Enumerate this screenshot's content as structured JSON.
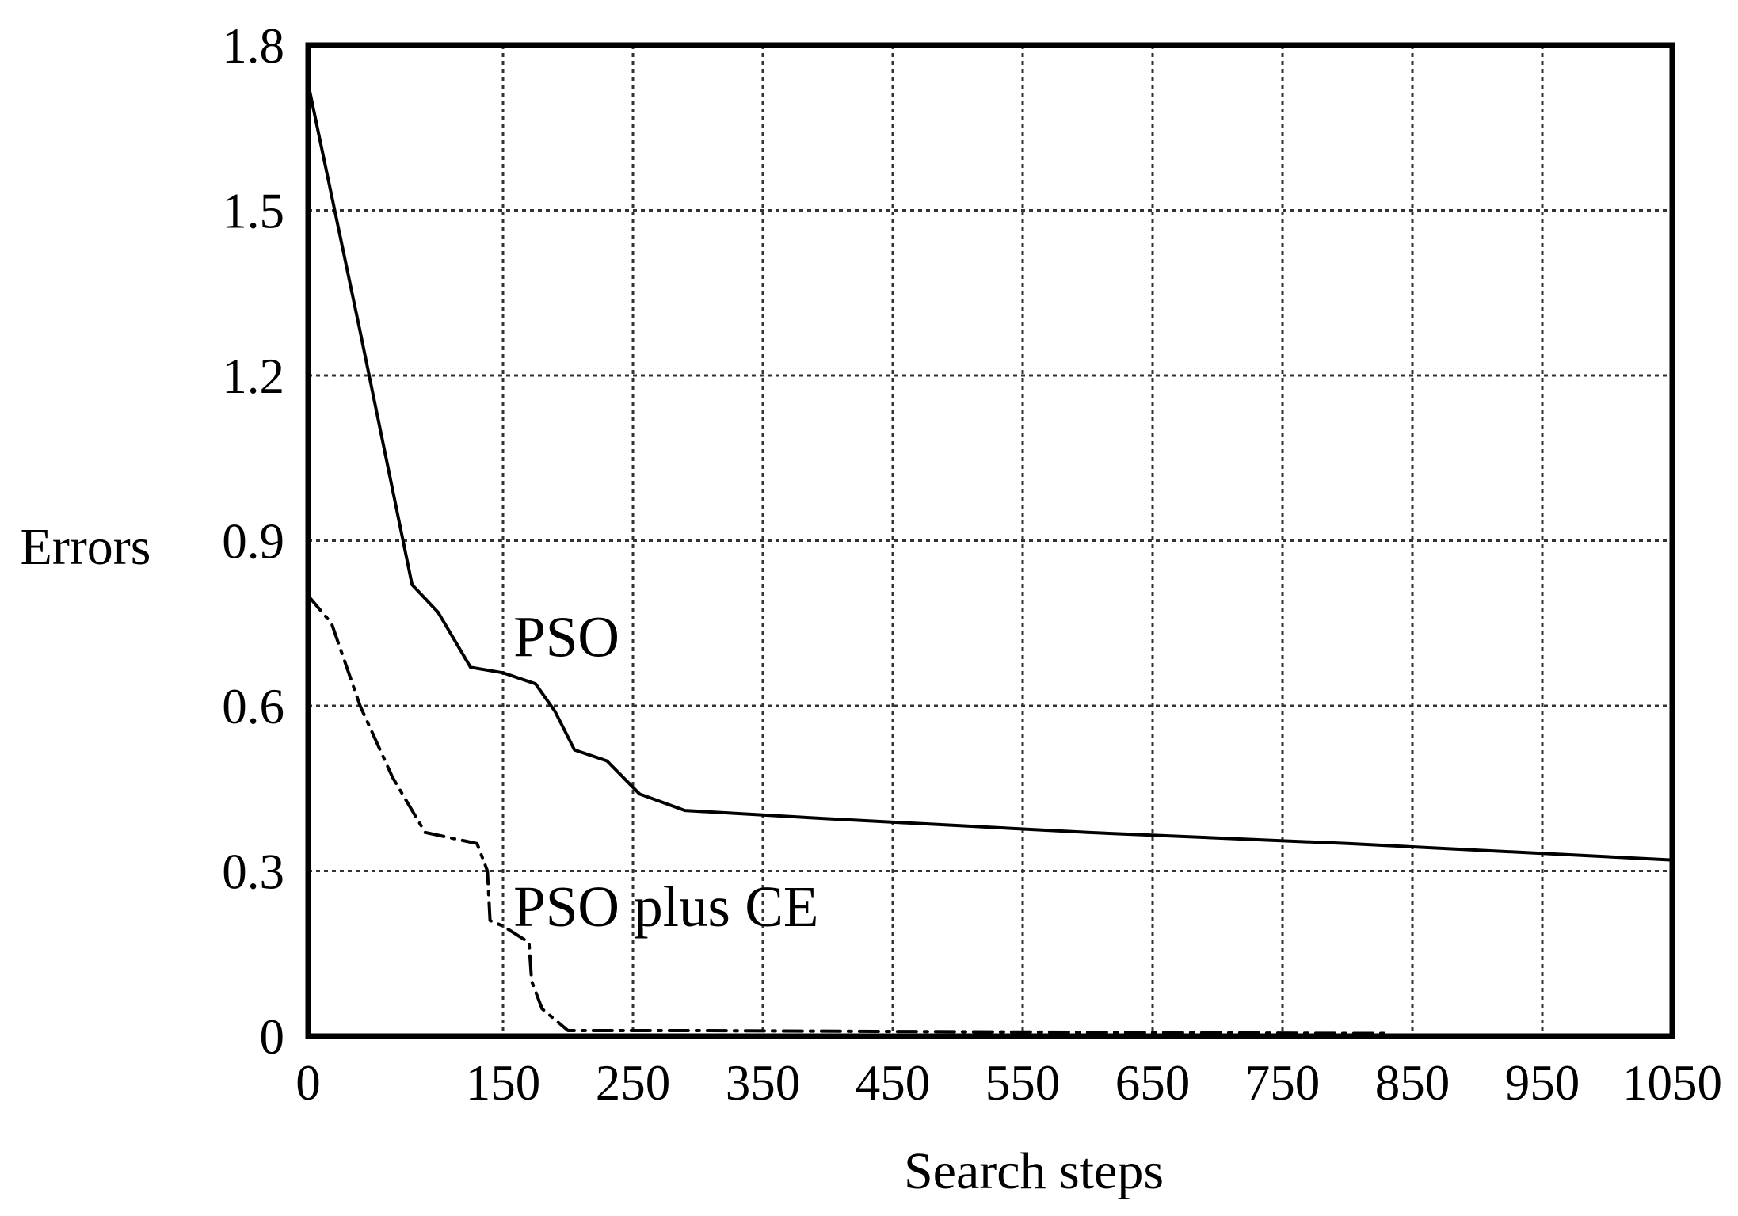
{
  "chart_data": {
    "type": "line",
    "xlabel": "Search steps",
    "ylabel": "Errors",
    "xlim": [
      0,
      1050
    ],
    "ylim": [
      0,
      1.8
    ],
    "x_ticks": [
      0,
      150,
      250,
      350,
      450,
      550,
      650,
      750,
      850,
      950,
      1050
    ],
    "x_tick_labels": [
      "0",
      "150",
      "250",
      "350",
      "450",
      "550",
      "650",
      "750",
      "850",
      "950",
      "1050"
    ],
    "y_ticks": [
      0,
      0.3,
      0.6,
      0.9,
      1.2,
      1.5,
      1.8
    ],
    "y_tick_labels": [
      "0",
      "0.3",
      "0.6",
      "0.9",
      "1.2",
      "1.5",
      "1.8"
    ],
    "grid": true,
    "series": [
      {
        "name": "PSO",
        "style": "solid",
        "color": "#000000",
        "x": [
          0,
          40,
          80,
          100,
          125,
          150,
          175,
          190,
          205,
          230,
          255,
          290,
          400,
          600,
          800,
          1050
        ],
        "y": [
          1.73,
          1.28,
          0.82,
          0.77,
          0.67,
          0.66,
          0.64,
          0.59,
          0.52,
          0.5,
          0.44,
          0.41,
          0.395,
          0.37,
          0.35,
          0.32
        ]
      },
      {
        "name": "PSO plus CE",
        "style": "dash-dot",
        "color": "#000000",
        "x": [
          0,
          18,
          40,
          65,
          90,
          130,
          138,
          140,
          150,
          170,
          172,
          180,
          200,
          230,
          300,
          500,
          800,
          830
        ],
        "y": [
          0.8,
          0.75,
          0.6,
          0.47,
          0.37,
          0.35,
          0.3,
          0.21,
          0.2,
          0.17,
          0.1,
          0.05,
          0.01,
          0.01,
          0.01,
          0.008,
          0.005,
          0.005
        ]
      }
    ],
    "annotations": [
      {
        "text": "PSO",
        "x": 158,
        "y": 0.69
      },
      {
        "text": "PSO plus CE",
        "x": 158,
        "y": 0.2
      }
    ]
  }
}
